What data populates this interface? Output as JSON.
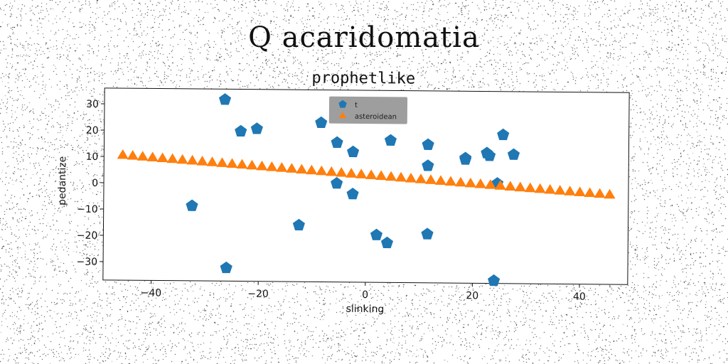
{
  "figure": {
    "suptitle": "Q acaridomatia"
  },
  "chart_data": {
    "type": "scatter",
    "title": "prophetlike",
    "xlabel": "slinking",
    "ylabel": "pedantize",
    "xlim": [
      -49,
      49
    ],
    "ylim": [
      -37,
      36
    ],
    "xticks": [
      -40,
      -20,
      0,
      20,
      40
    ],
    "yticks": [
      -30,
      -20,
      -10,
      0,
      10,
      20,
      30
    ],
    "xtick_labels": [
      "−40",
      "−20",
      "0",
      "20",
      "40"
    ],
    "ytick_labels": [
      "−30",
      "−20",
      "−10",
      "0",
      "10",
      "20",
      "30"
    ],
    "grid": false,
    "legend": {
      "placement": "top-center",
      "background": "#999999"
    },
    "series": [
      {
        "name": "t",
        "marker": "pentagon",
        "color": "#1f77b4",
        "points": [
          [
            -26.5,
            32.0
          ],
          [
            -23.5,
            20.0
          ],
          [
            -20.5,
            21.0
          ],
          [
            -32.5,
            -8.5
          ],
          [
            -26.0,
            -32.0
          ],
          [
            -12.5,
            -15.5
          ],
          [
            -8.5,
            23.5
          ],
          [
            -5.5,
            16.0
          ],
          [
            -5.5,
            0.5
          ],
          [
            -2.5,
            12.5
          ],
          [
            -2.5,
            -3.5
          ],
          [
            2.0,
            -19.0
          ],
          [
            4.0,
            -22.0
          ],
          [
            4.5,
            17.0
          ],
          [
            11.5,
            15.5
          ],
          [
            11.5,
            7.5
          ],
          [
            11.5,
            -18.5
          ],
          [
            18.5,
            10.5
          ],
          [
            18.5,
            10.0
          ],
          [
            22.5,
            12.5
          ],
          [
            23.0,
            11.5
          ],
          [
            24.5,
            1.0
          ],
          [
            25.5,
            19.5
          ],
          [
            27.5,
            12.0
          ],
          [
            24.0,
            -36.0
          ]
        ]
      },
      {
        "name": "asteroidean",
        "marker": "triangle",
        "color": "#ff7f0e",
        "x_start": -45.5,
        "x_end": 45.5,
        "count": 50,
        "y_start": 10.5,
        "y_end": -3.0
      }
    ]
  }
}
